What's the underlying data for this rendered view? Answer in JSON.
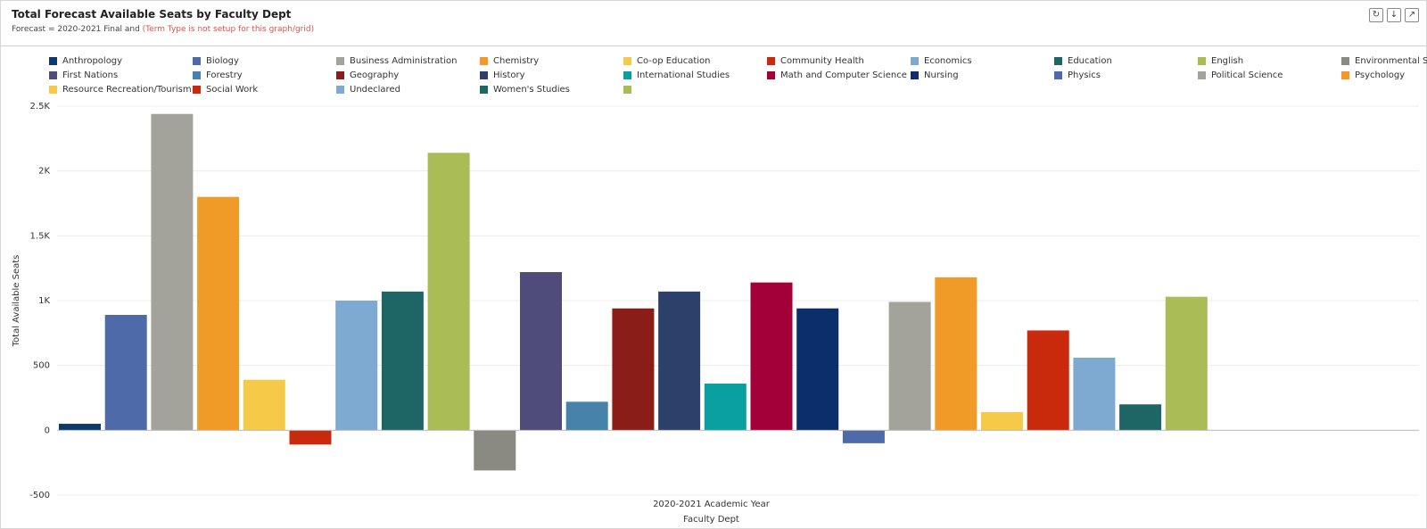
{
  "header": {
    "title": "Total Forecast Available Seats by Faculty Dept",
    "subtitle_prefix": "Forecast = 2020-2021 Final and ",
    "subtitle_warning": "(Term Type is not setup for this graph/grid)"
  },
  "toolbar": {
    "refresh_icon": "refresh-icon",
    "download_icon": "download-icon",
    "expand_icon": "expand-icon"
  },
  "chart_data": {
    "type": "bar",
    "title": "Total Forecast Available Seats by Faculty Dept",
    "xlabel": "Faculty Dept",
    "ylabel": "Total Available Seats",
    "categories": [
      "2020-2021 Academic Year"
    ],
    "ylim": [
      -500,
      2500
    ],
    "yticks": [
      -500,
      0,
      500,
      1000,
      1500,
      2000,
      2500
    ],
    "ytick_labels": [
      "-500",
      "0",
      "500",
      "1K",
      "1.5K",
      "2K",
      "2.5K"
    ],
    "grid": true,
    "legend_position": "top",
    "series": [
      {
        "name": "Anthropology",
        "value": 50,
        "color": "#0d3a6e"
      },
      {
        "name": "Biology",
        "value": 890,
        "color": "#4e6aa8"
      },
      {
        "name": "Business Administration",
        "value": 2440,
        "color": "#a3a39b"
      },
      {
        "name": "Chemistry",
        "value": 1800,
        "color": "#f09b27"
      },
      {
        "name": "Co-op Education",
        "value": 390,
        "color": "#f7c948"
      },
      {
        "name": "Community Health",
        "value": -110,
        "color": "#c92a0c"
      },
      {
        "name": "Economics",
        "value": 1000,
        "color": "#7eaad2"
      },
      {
        "name": "Education",
        "value": 1070,
        "color": "#1e6666"
      },
      {
        "name": "English",
        "value": 2140,
        "color": "#a9bc55"
      },
      {
        "name": "Environmental Studies",
        "value": -310,
        "color": "#8a8a82"
      },
      {
        "name": "First Nations",
        "value": 1220,
        "color": "#4f4c7c"
      },
      {
        "name": "Forestry",
        "value": 220,
        "color": "#4682aa"
      },
      {
        "name": "Geography",
        "value": 940,
        "color": "#8b1d18"
      },
      {
        "name": "History",
        "value": 1070,
        "color": "#2c4169"
      },
      {
        "name": "International Studies",
        "value": 360,
        "color": "#0aa0a2"
      },
      {
        "name": "Math and Computer Science",
        "value": 1140,
        "color": "#a3003a"
      },
      {
        "name": "Nursing",
        "value": 940,
        "color": "#0c2f6c"
      },
      {
        "name": "Physics",
        "value": -100,
        "color": "#4e6aa8"
      },
      {
        "name": "Political Science",
        "value": 990,
        "color": "#a3a39b"
      },
      {
        "name": "Psychology",
        "value": 1180,
        "color": "#f09b27"
      },
      {
        "name": "Resource Recreation/Tourism",
        "value": 140,
        "color": "#f7c948"
      },
      {
        "name": "Social Work",
        "value": 770,
        "color": "#c92a0c"
      },
      {
        "name": "Undeclared",
        "value": 560,
        "color": "#7eaad2"
      },
      {
        "name": "Women's Studies",
        "value": 200,
        "color": "#1e6666"
      },
      {
        "name": "",
        "value": 1030,
        "color": "#a9bc55"
      }
    ]
  }
}
